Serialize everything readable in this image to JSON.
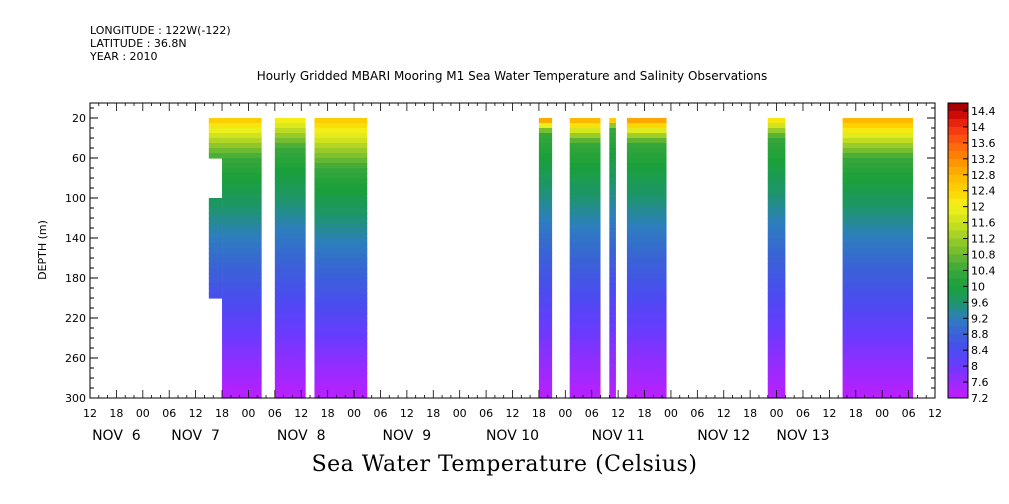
{
  "header": {
    "longitude": "LONGITUDE : 122W(-122)",
    "latitude": "LATITUDE : 36.8N",
    "year": "YEAR : 2010"
  },
  "chart_data": {
    "type": "heatmap",
    "title": "Hourly Gridded MBARI Mooring M1 Sea Water Temperature and Salinity Observations",
    "colorbar_title": "Sea Water Temperature (Celsius)",
    "ylabel": "DEPTH (m)",
    "ylim": [
      300,
      5
    ],
    "yticks": [
      20,
      60,
      100,
      140,
      180,
      220,
      260,
      300
    ],
    "x_hour_ticks": [
      "12",
      "18",
      "00",
      "06",
      "12",
      "18",
      "00",
      "06",
      "12",
      "18",
      "00",
      "06",
      "12",
      "18",
      "00",
      "06",
      "12",
      "18",
      "00",
      "06",
      "12",
      "18",
      "00",
      "06",
      "12",
      "18",
      "00",
      "06",
      "12",
      "18",
      "00",
      "06",
      "12"
    ],
    "x_day_labels": [
      {
        "label": "NOV  6",
        "hour": 6
      },
      {
        "label": "NOV  7",
        "hour": 24
      },
      {
        "label": "NOV  8",
        "hour": 48
      },
      {
        "label": "NOV  9",
        "hour": 72
      },
      {
        "label": "NOV 10",
        "hour": 96
      },
      {
        "label": "NOV 11",
        "hour": 120
      },
      {
        "label": "NOV 12",
        "hour": 144
      },
      {
        "label": "NOV 13",
        "hour": 162
      }
    ],
    "x_start": "2010-11-05 12:00",
    "x_end": "2010-11-13 12:00",
    "colorbar_ticks": [
      "14.4",
      "14",
      "13.6",
      "13.2",
      "12.8",
      "12.4",
      "12",
      "11.6",
      "11.2",
      "10.8",
      "10.4",
      "10",
      "9.6",
      "9.2",
      "8.8",
      "8.4",
      "8",
      "7.6",
      "7.2"
    ],
    "cmin": 7.2,
    "cmax": 14.6,
    "colors": {
      "7.2": "#c41cff",
      "7.6": "#9a2aff",
      "8.0": "#6a3aff",
      "8.4": "#4a4cf0",
      "8.8": "#3a62d6",
      "9.2": "#2d7ebe",
      "9.6": "#1d9668",
      "10.0": "#1aa03a",
      "10.4": "#3aa83a",
      "10.8": "#6cba30",
      "11.2": "#9ccc28",
      "11.6": "#cde21e",
      "12.0": "#f3f21a",
      "12.4": "#fdd400",
      "12.8": "#ffb400",
      "13.2": "#ff8a00",
      "13.6": "#ff6010",
      "14.0": "#f23010",
      "14.4": "#c00008",
      "14.6": "#8c0000"
    },
    "segments": [
      {
        "start_hour": 30,
        "end_hour": 39,
        "top_depth": 20,
        "bottom_depth": 300,
        "surface_temp": 12.6,
        "thermocline_depth": 60
      },
      {
        "start_hour": 42,
        "end_hour": 49,
        "top_depth": 20,
        "bottom_depth": 300,
        "surface_temp": 12.2,
        "thermocline_depth": 50
      },
      {
        "start_hour": 51,
        "end_hour": 63,
        "top_depth": 20,
        "bottom_depth": 300,
        "surface_temp": 12.6,
        "thermocline_depth": 70
      },
      {
        "start_hour": 102,
        "end_hour": 105,
        "top_depth": 20,
        "bottom_depth": 300,
        "surface_temp": 13.4,
        "thermocline_depth": 35
      },
      {
        "start_hour": 109,
        "end_hour": 116,
        "top_depth": 20,
        "bottom_depth": 300,
        "surface_temp": 13.0,
        "thermocline_depth": 45
      },
      {
        "start_hour": 118,
        "end_hour": 119.5,
        "top_depth": 20,
        "bottom_depth": 300,
        "surface_temp": 13.2,
        "thermocline_depth": 30
      },
      {
        "start_hour": 122,
        "end_hour": 131,
        "top_depth": 20,
        "bottom_depth": 300,
        "surface_temp": 13.2,
        "thermocline_depth": 45
      },
      {
        "start_hour": 154,
        "end_hour": 158,
        "top_depth": 20,
        "bottom_depth": 300,
        "surface_temp": 12.4,
        "thermocline_depth": 40
      },
      {
        "start_hour": 171,
        "end_hour": 187,
        "top_depth": 20,
        "bottom_depth": 300,
        "surface_temp": 12.9,
        "thermocline_depth": 60
      }
    ],
    "early_segment": [
      {
        "start_hour": 27,
        "end_hour": 30,
        "top_depth": 20,
        "bottom_depth": 60,
        "surface_temp": 12.6,
        "thermocline_depth": 60
      },
      {
        "start_hour": 27,
        "end_hour": 30,
        "top_depth": 100,
        "bottom_depth": 200,
        "surface_temp": 12.6,
        "thermocline_depth": 60
      }
    ]
  }
}
